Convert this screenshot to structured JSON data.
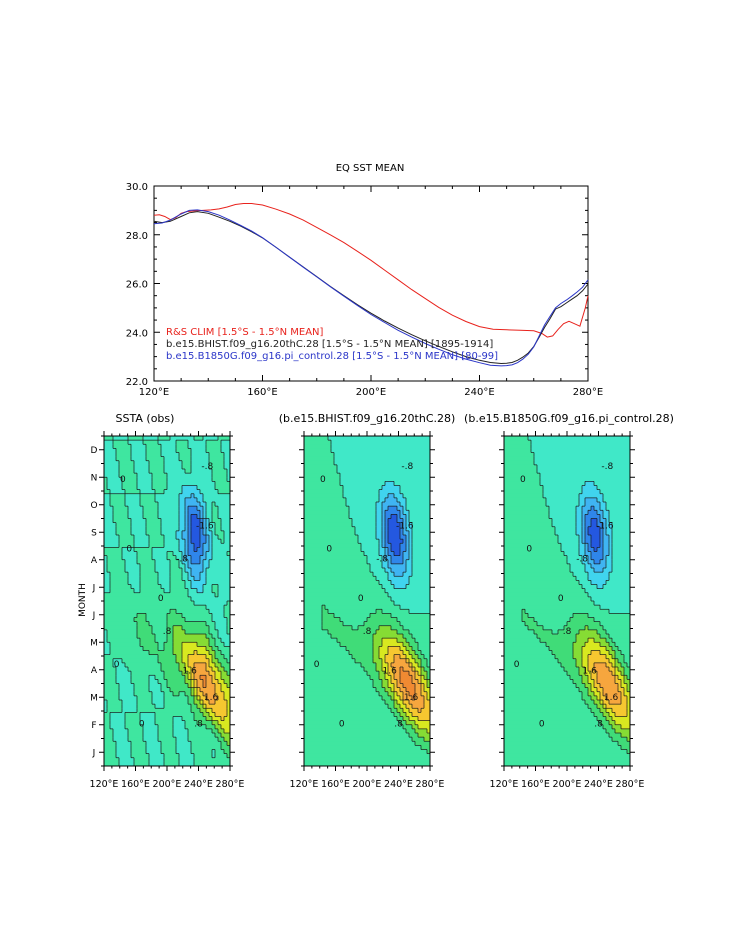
{
  "chart_data": [
    {
      "type": "line",
      "title": "EQ SST MEAN",
      "xlabel": "",
      "ylabel": "",
      "xlim": [
        120,
        280
      ],
      "ylim": [
        22,
        30
      ],
      "x_ticks": [
        120,
        160,
        200,
        240,
        280
      ],
      "x_tick_labels": [
        "120°E",
        "160°E",
        "200°E",
        "240°E",
        "280°E"
      ],
      "y_ticks": [
        22,
        24,
        26,
        28,
        30
      ],
      "y_tick_labels": [
        "22.0",
        "24.0",
        "26.0",
        "28.0",
        "30.0"
      ],
      "legend_position": "bottom-left",
      "series": [
        {
          "name": "R&S CLIM  [1.5°S - 1.5°N MEAN]",
          "color": "#e8221c",
          "x": [
            120,
            122,
            124,
            126,
            128,
            130,
            132,
            135,
            138,
            141,
            144,
            147,
            150,
            153,
            156,
            160,
            165,
            170,
            175,
            180,
            185,
            190,
            195,
            200,
            205,
            210,
            215,
            220,
            225,
            230,
            235,
            240,
            245,
            250,
            255,
            260,
            263,
            265,
            267,
            269,
            271,
            273,
            275,
            277,
            279,
            280
          ],
          "y": [
            28.8,
            28.82,
            28.75,
            28.62,
            28.7,
            28.88,
            28.95,
            28.98,
            29.0,
            29.02,
            29.06,
            29.14,
            29.24,
            29.28,
            29.28,
            29.22,
            29.05,
            28.85,
            28.6,
            28.3,
            28.0,
            27.68,
            27.32,
            26.95,
            26.55,
            26.15,
            25.75,
            25.38,
            25.02,
            24.7,
            24.44,
            24.23,
            24.12,
            24.1,
            24.08,
            24.06,
            23.95,
            23.8,
            23.85,
            24.12,
            24.35,
            24.45,
            24.35,
            24.25,
            25.0,
            25.5
          ]
        },
        {
          "name": "b.e15.BHIST.f09_g16.20thC.28  [1.5°S - 1.5°N MEAN]  [1895-1914]",
          "color": "#222222",
          "x": [
            120,
            123,
            126,
            130,
            133,
            136,
            140,
            144,
            148,
            152,
            156,
            160,
            165,
            170,
            175,
            180,
            185,
            190,
            195,
            200,
            205,
            210,
            215,
            220,
            225,
            230,
            235,
            240,
            244,
            248,
            250,
            252,
            254,
            256,
            258,
            260,
            262,
            264,
            266,
            268,
            270,
            272,
            274,
            276,
            278,
            280
          ],
          "y": [
            28.55,
            28.5,
            28.55,
            28.75,
            28.9,
            28.95,
            28.88,
            28.72,
            28.55,
            28.35,
            28.12,
            27.87,
            27.48,
            27.08,
            26.68,
            26.28,
            25.88,
            25.5,
            25.13,
            24.78,
            24.46,
            24.17,
            23.9,
            23.65,
            23.42,
            23.2,
            23.0,
            22.85,
            22.76,
            22.72,
            22.73,
            22.76,
            22.85,
            22.98,
            23.15,
            23.42,
            23.8,
            24.2,
            24.55,
            24.95,
            25.05,
            25.2,
            25.35,
            25.5,
            25.7,
            25.98
          ]
        },
        {
          "name": "b.e15.B1850G.f09_g16.pi_control.28  [1.5°S - 1.5°N MEAN]  [80-99]",
          "color": "#2a35c8",
          "x": [
            120,
            123,
            126,
            130,
            133,
            136,
            140,
            144,
            148,
            152,
            156,
            160,
            165,
            170,
            175,
            180,
            185,
            190,
            195,
            200,
            205,
            210,
            215,
            220,
            225,
            230,
            235,
            240,
            244,
            248,
            250,
            252,
            254,
            256,
            258,
            260,
            262,
            264,
            266,
            268,
            270,
            272,
            274,
            276,
            278,
            280
          ],
          "y": [
            28.45,
            28.48,
            28.6,
            28.85,
            29.0,
            29.02,
            28.95,
            28.8,
            28.6,
            28.38,
            28.15,
            27.88,
            27.48,
            27.08,
            26.67,
            26.27,
            25.87,
            25.48,
            25.1,
            24.73,
            24.4,
            24.08,
            23.8,
            23.54,
            23.3,
            23.08,
            22.9,
            22.75,
            22.65,
            22.62,
            22.63,
            22.66,
            22.75,
            22.9,
            23.1,
            23.4,
            23.85,
            24.3,
            24.65,
            25.0,
            25.18,
            25.32,
            25.48,
            25.65,
            25.85,
            26.15
          ]
        }
      ]
    },
    {
      "type": "heatmap",
      "title": "SSTA (obs)",
      "ylabel": "MONTH",
      "y_tick_labels": [
        "J",
        "F",
        "M",
        "A",
        "M",
        "J",
        "J",
        "A",
        "S",
        "O",
        "N",
        "D"
      ],
      "x_tick_labels": [
        "120°E",
        "160°E",
        "200°E",
        "240°E",
        "280°E"
      ],
      "contour_labels": [
        "-.8",
        "-1.6",
        "-.8",
        "0",
        "0",
        "0",
        ".8",
        "1.6",
        "1.6",
        ".8",
        "0",
        "0"
      ]
    },
    {
      "type": "heatmap",
      "title": "(b.e15.BHIST.f09_g16.20thC.28)",
      "x_tick_labels": [
        "120°E",
        "160°E",
        "200°E",
        "240°E",
        "280°E"
      ],
      "contour_labels": [
        "-.8",
        "-1.6",
        "-.8",
        "0",
        "0",
        "0",
        ".8",
        "1.6",
        "1.6",
        ".8",
        "0",
        "0"
      ]
    },
    {
      "type": "heatmap",
      "title": "(b.e15.B1850G.f09_g16.pi_control.28)",
      "x_tick_labels": [
        "120°E",
        "160°E",
        "200°E",
        "240°E",
        "280°E"
      ],
      "contour_labels": [
        "-.8",
        "-1.6",
        "-.8",
        "0",
        "0",
        "0",
        ".8",
        "1.6",
        "1.6",
        ".8",
        "0",
        "0"
      ]
    }
  ],
  "palette": {
    "axis": "#000000",
    "levels": [
      "#1a2ad0",
      "#2458e0",
      "#2f86ea",
      "#3fb4f2",
      "#40d4ee",
      "#40e8c8",
      "#3fe6a0",
      "#40dc78",
      "#86dc34",
      "#d8e820",
      "#f6c730",
      "#f6a63e",
      "#f08a32"
    ]
  }
}
